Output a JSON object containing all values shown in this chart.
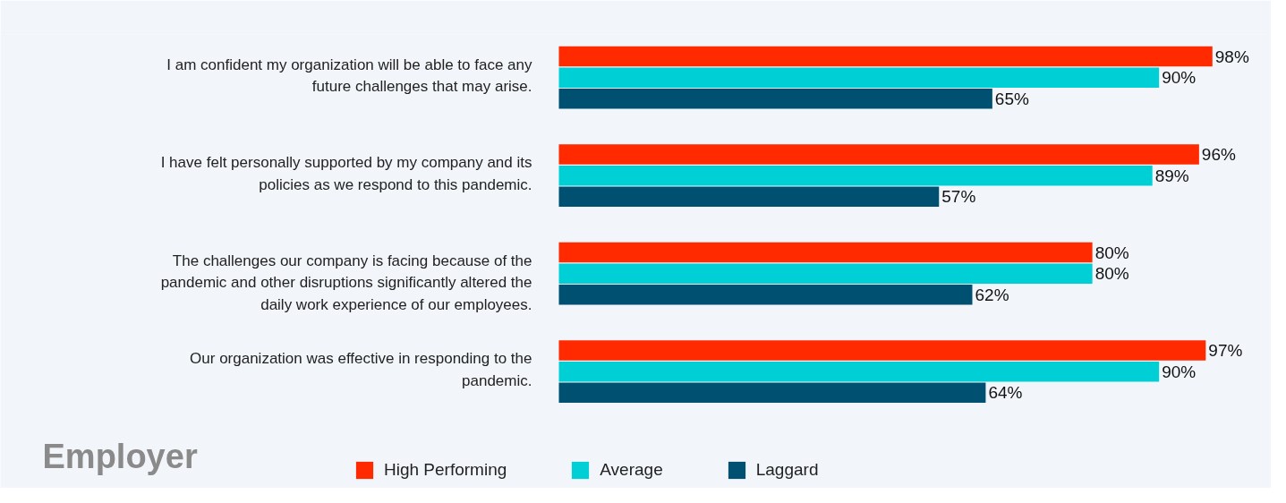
{
  "chart_data": {
    "type": "bar",
    "orientation": "horizontal",
    "title": "Employer",
    "categories": [
      "I am confident my organization will be able to face any future challenges that may arise.",
      "I have felt personally supported by my company and its policies as we respond to this pandemic.",
      "The challenges our company is facing because of the pandemic and other disruptions significantly altered the daily work experience of our employees.",
      "Our organization was effective in responding to the pandemic."
    ],
    "series": [
      {
        "name": "High Performing",
        "color": "#ff2a00",
        "values": [
          98,
          96,
          80,
          97
        ],
        "value_labels": [
          "98%",
          "96%",
          "80%",
          "97%"
        ]
      },
      {
        "name": "Average",
        "color": "#00cfd6",
        "values": [
          90,
          89,
          80,
          90
        ],
        "value_labels": [
          "90%",
          "89%",
          "80%",
          "90%"
        ]
      },
      {
        "name": "Laggard",
        "color": "#005072",
        "values": [
          65,
          57,
          62,
          64
        ],
        "value_labels": [
          "65%",
          "57%",
          "62%",
          "64%"
        ]
      }
    ],
    "legend": "bottom",
    "grid": false
  }
}
